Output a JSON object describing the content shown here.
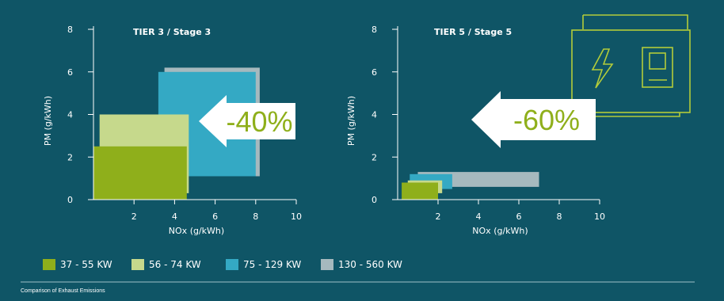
{
  "colors": {
    "background": "#0f5566",
    "axis": "#ffffff",
    "green_dark": "#8faf1b",
    "green_light": "#c6d98c",
    "blue": "#34a9c4",
    "grey": "#a6b9be",
    "generator_outline": "#b3cc3a",
    "callout_bg": "#ffffff",
    "callout_text": "#8faf1b"
  },
  "legend_entries": [
    "37 - 55 KW",
    "56 - 74 KW",
    "75 - 129 KW",
    "130 - 560 KW"
  ],
  "footer": {
    "caption": "Comparison of Exhaust Emissions"
  },
  "generator_icon": {
    "icon": "generator-with-lightning-bolt-icon"
  },
  "chart_data": [
    {
      "type": "bar",
      "title": "TIER 3 / Stage 3",
      "xlabel": "NOx (g/kWh)",
      "ylabel": "PM (g/kWh)",
      "xlim": [
        0,
        10
      ],
      "ylim": [
        0,
        8
      ],
      "xticks": [
        2,
        4,
        6,
        8,
        10
      ],
      "yticks": [
        0,
        2,
        4,
        6,
        8
      ],
      "callout": "-40%",
      "series": [
        {
          "name": "130 - 560 KW",
          "x_range": [
            3.5,
            8.2
          ],
          "y_range": [
            1.1,
            6.2
          ],
          "color_key": "grey"
        },
        {
          "name": "75 - 129 KW",
          "x_range": [
            3.2,
            8.0
          ],
          "y_range": [
            1.1,
            6.0
          ],
          "color_key": "blue"
        },
        {
          "name": "56 - 74 KW",
          "x_range": [
            0.3,
            4.7
          ],
          "y_range": [
            0.3,
            4.0
          ],
          "color_key": "green_light"
        },
        {
          "name": "37 - 55 KW",
          "x_range": [
            0.0,
            4.6
          ],
          "y_range": [
            0.0,
            2.5
          ],
          "color_key": "green_dark"
        }
      ]
    },
    {
      "type": "bar",
      "title": "TIER 5 / Stage 5",
      "xlabel": "NOx (g/kWh)",
      "ylabel": "PM (g/kWh)",
      "xlim": [
        0,
        10
      ],
      "ylim": [
        0,
        8
      ],
      "xticks": [
        2,
        4,
        6,
        8,
        10
      ],
      "yticks": [
        0,
        2,
        4,
        6,
        8
      ],
      "callout": "-60%",
      "series": [
        {
          "name": "130 - 560 KW",
          "x_range": [
            1.0,
            7.0
          ],
          "y_range": [
            0.6,
            1.3
          ],
          "color_key": "grey"
        },
        {
          "name": "75 - 129 KW",
          "x_range": [
            0.6,
            2.7
          ],
          "y_range": [
            0.5,
            1.2
          ],
          "color_key": "blue"
        },
        {
          "name": "56 - 74 KW",
          "x_range": [
            0.5,
            2.2
          ],
          "y_range": [
            0.3,
            0.9
          ],
          "color_key": "green_light"
        },
        {
          "name": "37 - 55 KW",
          "x_range": [
            0.2,
            2.0
          ],
          "y_range": [
            0.0,
            0.8
          ],
          "color_key": "green_dark"
        }
      ]
    }
  ]
}
